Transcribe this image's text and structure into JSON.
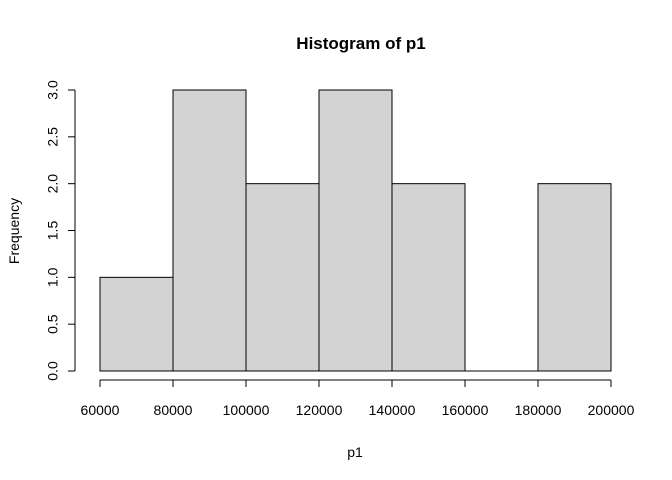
{
  "chart_data": {
    "type": "bar",
    "title": "Histogram of p1",
    "xlabel": "p1",
    "ylabel": "Frequency",
    "bins": [
      {
        "from": 60000,
        "to": 80000,
        "count": 1
      },
      {
        "from": 80000,
        "to": 100000,
        "count": 3
      },
      {
        "from": 100000,
        "to": 120000,
        "count": 2
      },
      {
        "from": 120000,
        "to": 140000,
        "count": 3
      },
      {
        "from": 140000,
        "to": 160000,
        "count": 2
      },
      {
        "from": 160000,
        "to": 180000,
        "count": 0
      },
      {
        "from": 180000,
        "to": 200000,
        "count": 2
      }
    ],
    "xlim": [
      60000,
      200000
    ],
    "ylim": [
      0,
      3
    ],
    "x_ticks": [
      60000,
      80000,
      100000,
      120000,
      140000,
      160000,
      180000,
      200000
    ],
    "x_tick_labels": [
      "60000",
      "80000",
      "100000",
      "120000",
      "140000",
      "160000",
      "180000",
      "200000"
    ],
    "y_ticks": [
      0,
      0.5,
      1,
      1.5,
      2,
      2.5,
      3
    ],
    "y_tick_labels": [
      "0.0",
      "0.5",
      "1.0",
      "1.5",
      "2.0",
      "2.5",
      "3.0"
    ],
    "bar_fill": "#d3d3d3",
    "bar_stroke": "#000000",
    "grid": false,
    "legend": "none"
  }
}
